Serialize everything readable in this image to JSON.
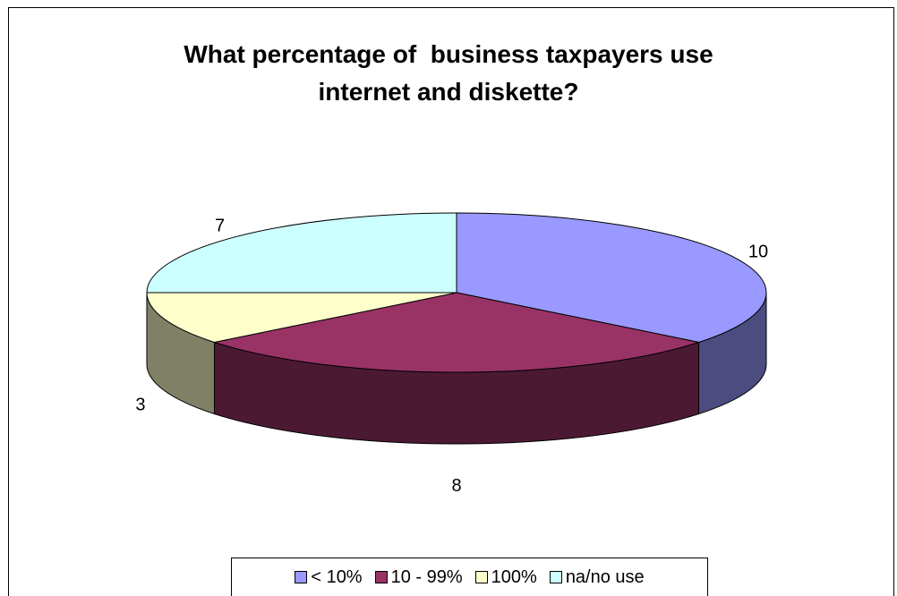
{
  "chart_data": {
    "type": "pie",
    "title_lines": [
      "What percentage of  business taxpayers use",
      "internet and diskette?"
    ],
    "categories": [
      "< 10%",
      "10 - 99%",
      "100%",
      "na/no use"
    ],
    "values": [
      10,
      8,
      3,
      7
    ],
    "data_labels": [
      "10",
      "8",
      "3",
      "7"
    ],
    "colors": [
      "#9999ff",
      "#993366",
      "#ffffcc",
      "#ccffff"
    ],
    "side_colors": [
      "#4c4c80",
      "#4c1933",
      "#808066",
      "#668080"
    ],
    "legend_position": "bottom",
    "style": "3d"
  }
}
